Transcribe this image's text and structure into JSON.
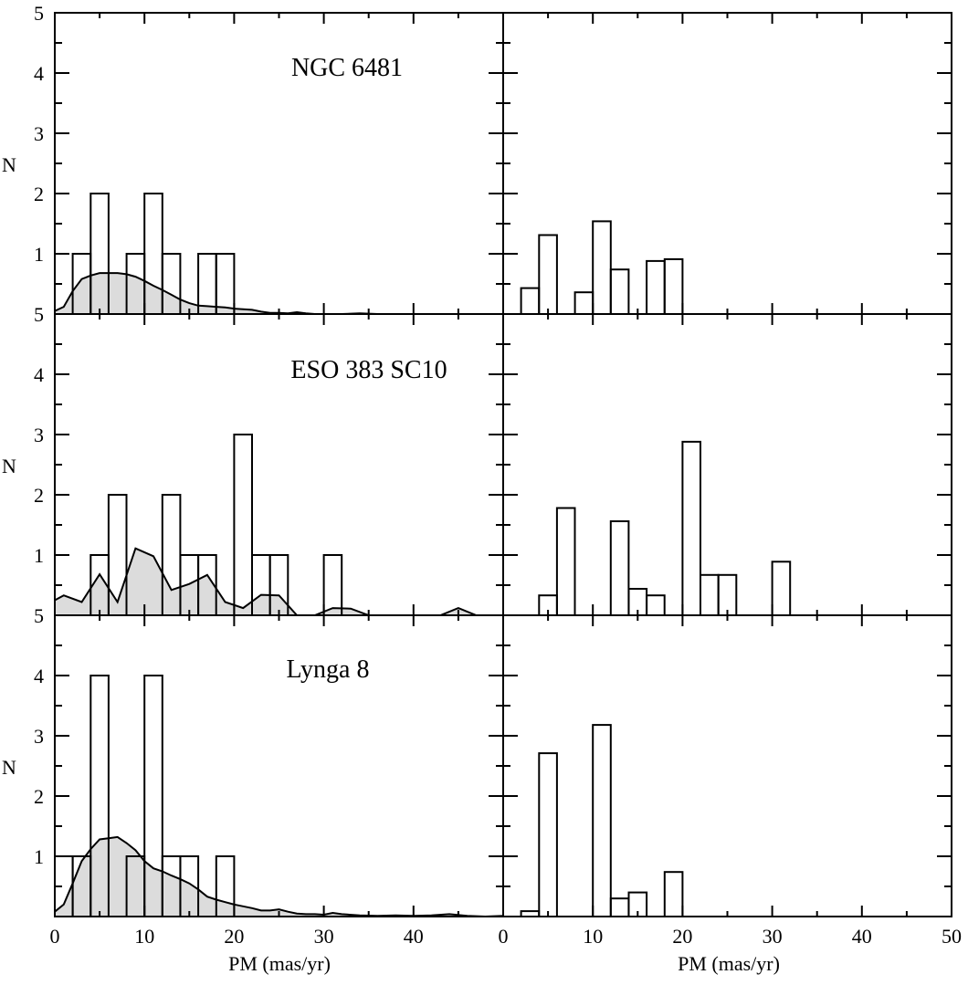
{
  "figure": {
    "xlabel": "PM (mas/yr)",
    "ylabel": "N",
    "x_ticks": [
      "0",
      "10",
      "20",
      "30",
      "40"
    ],
    "x_ticks_right": [
      "0",
      "10",
      "20",
      "30",
      "40",
      "50"
    ],
    "y_ticks": [
      "1",
      "2",
      "3",
      "4",
      "5"
    ]
  },
  "chart_data": [
    {
      "type": "bar",
      "panel": "top-left",
      "title": "NGC 6481",
      "xlim": [
        0,
        50
      ],
      "ylim": [
        0,
        5
      ],
      "bin_width": 2,
      "bin_starts": [
        2,
        4,
        8,
        10,
        12,
        16,
        18
      ],
      "values": [
        1,
        2,
        1,
        2,
        1,
        1,
        1
      ],
      "background_curve": {
        "x": [
          0,
          1,
          2,
          3,
          4,
          5,
          6,
          7,
          8,
          9,
          10,
          11,
          12,
          13,
          14,
          15,
          16,
          17,
          18,
          19,
          20,
          21,
          22,
          23,
          24,
          25,
          26,
          27,
          28,
          29,
          30,
          32,
          34,
          36,
          38,
          40,
          42,
          44,
          46,
          48,
          50
        ],
        "y": [
          0.05,
          0.12,
          0.38,
          0.58,
          0.64,
          0.68,
          0.68,
          0.68,
          0.66,
          0.62,
          0.55,
          0.47,
          0.4,
          0.32,
          0.24,
          0.18,
          0.14,
          0.13,
          0.12,
          0.11,
          0.09,
          0.08,
          0.07,
          0.04,
          0.02,
          0.02,
          0.01,
          0.03,
          0.01,
          0.0,
          0.0,
          0.0,
          0.01,
          0.0,
          0.0,
          0.0,
          0.0,
          0.0,
          0.0,
          0.0,
          0.0
        ]
      }
    },
    {
      "type": "bar",
      "panel": "top-right",
      "xlim": [
        0,
        50
      ],
      "ylim": [
        0,
        5
      ],
      "bin_width": 2,
      "bin_starts": [
        2,
        4,
        8,
        10,
        12,
        16,
        18
      ],
      "values": [
        0.43,
        1.31,
        0.36,
        1.54,
        0.74,
        0.88,
        0.91
      ]
    },
    {
      "type": "bar",
      "panel": "middle-left",
      "title": "ESO 383 SC10",
      "xlim": [
        0,
        50
      ],
      "ylim": [
        0,
        5
      ],
      "bin_width": 2,
      "bin_starts": [
        4,
        6,
        12,
        14,
        16,
        20,
        22,
        24,
        30
      ],
      "values": [
        1,
        2,
        2,
        1,
        1,
        3,
        1,
        1,
        1
      ],
      "background_curve": {
        "x": [
          0,
          1,
          3,
          5,
          7,
          9,
          11,
          13,
          15,
          17,
          19,
          21,
          23,
          25,
          27,
          29,
          31,
          33,
          35,
          37,
          39,
          41,
          43,
          45,
          47,
          49,
          50
        ],
        "y": [
          0.25,
          0.33,
          0.22,
          0.68,
          0.22,
          1.11,
          0.98,
          0.42,
          0.52,
          0.67,
          0.22,
          0.12,
          0.34,
          0.33,
          0.0,
          0.0,
          0.12,
          0.11,
          0.0,
          0.0,
          0.0,
          0.0,
          0.0,
          0.12,
          0.0,
          0.0,
          0.0
        ]
      }
    },
    {
      "type": "bar",
      "panel": "middle-right",
      "xlim": [
        0,
        50
      ],
      "ylim": [
        0,
        5
      ],
      "bin_width": 2,
      "bin_starts": [
        4,
        6,
        12,
        14,
        16,
        20,
        22,
        24,
        30
      ],
      "values": [
        0.33,
        1.78,
        1.56,
        0.44,
        0.33,
        2.88,
        0.67,
        0.67,
        0.89
      ]
    },
    {
      "type": "bar",
      "panel": "bottom-left",
      "title": "Lynga 8",
      "xlim": [
        0,
        50
      ],
      "ylim": [
        0,
        5
      ],
      "bin_width": 2,
      "bin_starts": [
        0,
        2,
        4,
        8,
        10,
        12,
        14,
        18
      ],
      "values": [
        1,
        1,
        4,
        1,
        4,
        1,
        1,
        1
      ],
      "background_curve": {
        "x": [
          0,
          1,
          2,
          3,
          4,
          5,
          6,
          7,
          8,
          9,
          10,
          11,
          12,
          13,
          14,
          15,
          16,
          17,
          18,
          19,
          20,
          21,
          22,
          23,
          24,
          25,
          26,
          27,
          28,
          29,
          30,
          31,
          32,
          34,
          36,
          38,
          40,
          42,
          44,
          46,
          48,
          50
        ],
        "y": [
          0.08,
          0.2,
          0.55,
          0.92,
          1.12,
          1.28,
          1.3,
          1.32,
          1.22,
          1.1,
          0.92,
          0.8,
          0.75,
          0.68,
          0.62,
          0.55,
          0.45,
          0.33,
          0.28,
          0.24,
          0.2,
          0.17,
          0.14,
          0.1,
          0.1,
          0.12,
          0.08,
          0.05,
          0.04,
          0.04,
          0.03,
          0.06,
          0.04,
          0.02,
          0.01,
          0.02,
          0.01,
          0.02,
          0.04,
          0.01,
          0.0,
          0.01
        ]
      }
    },
    {
      "type": "bar",
      "panel": "bottom-right",
      "xlim": [
        0,
        50
      ],
      "ylim": [
        0,
        5
      ],
      "bin_width": 2,
      "bin_starts": [
        2,
        4,
        10,
        12,
        14,
        18
      ],
      "values": [
        0.09,
        2.71,
        3.18,
        0.3,
        0.4,
        0.74
      ]
    }
  ]
}
